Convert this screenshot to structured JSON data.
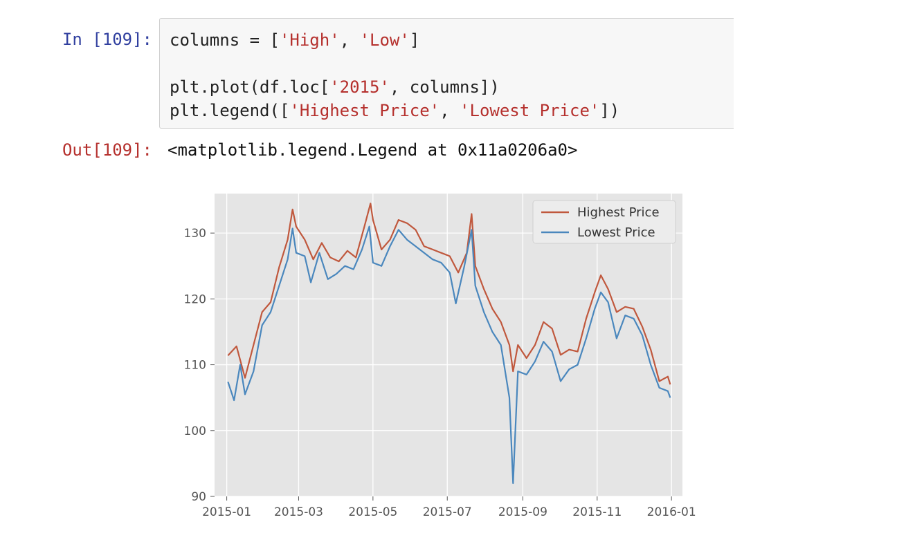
{
  "cell": {
    "in_prompt": "In [109]:",
    "out_prompt": "Out[109]:",
    "code": {
      "line1": {
        "a": "columns = [",
        "s1": "'High'",
        "b": ", ",
        "s2": "'Low'",
        "c": "]"
      },
      "line2": {
        "a": "plt.plot(df.loc[",
        "s1": "'2015'",
        "b": ", columns])"
      },
      "line3": {
        "a": "plt.legend([",
        "s1": "'Highest Price'",
        "b": ", ",
        "s2": "'Lowest Price'",
        "c": "])"
      }
    },
    "output_text": "<matplotlib.legend.Legend at 0x11a0206a0>"
  },
  "colors": {
    "high": "#c0583d",
    "low": "#4a87bd",
    "plot_bg": "#e5e5e5",
    "grid": "#ffffff"
  },
  "chart_data": {
    "type": "line",
    "ylim": [
      90,
      136
    ],
    "y_ticks": [
      90,
      100,
      110,
      120,
      130
    ],
    "x_ticks": [
      "2015-01",
      "2015-03",
      "2015-05",
      "2015-07",
      "2015-09",
      "2015-11",
      "2016-01"
    ],
    "xlim": [
      "2014-12-22",
      "2016-01-10"
    ],
    "legend": {
      "position": "upper right",
      "entries": [
        "Highest Price",
        "Lowest Price"
      ]
    },
    "grid": true,
    "series": [
      {
        "name": "Highest Price",
        "color_key": "high",
        "points": [
          [
            "2015-01-02",
            111.4
          ],
          [
            "2015-01-09",
            112.8
          ],
          [
            "2015-01-16",
            108.0
          ],
          [
            "2015-01-23",
            113.0
          ],
          [
            "2015-01-30",
            118.0
          ],
          [
            "2015-02-06",
            119.5
          ],
          [
            "2015-02-13",
            124.8
          ],
          [
            "2015-02-20",
            129.0
          ],
          [
            "2015-02-24",
            133.6
          ],
          [
            "2015-02-27",
            131.0
          ],
          [
            "2015-03-06",
            129.0
          ],
          [
            "2015-03-13",
            126.0
          ],
          [
            "2015-03-20",
            128.5
          ],
          [
            "2015-03-27",
            126.3
          ],
          [
            "2015-04-03",
            125.7
          ],
          [
            "2015-04-10",
            127.3
          ],
          [
            "2015-04-17",
            126.3
          ],
          [
            "2015-04-24",
            131.0
          ],
          [
            "2015-04-29",
            134.5
          ],
          [
            "2015-05-01",
            132.0
          ],
          [
            "2015-05-08",
            127.5
          ],
          [
            "2015-05-15",
            129.0
          ],
          [
            "2015-05-22",
            132.0
          ],
          [
            "2015-05-29",
            131.5
          ],
          [
            "2015-06-05",
            130.5
          ],
          [
            "2015-06-12",
            128.0
          ],
          [
            "2015-06-19",
            127.5
          ],
          [
            "2015-06-26",
            127.0
          ],
          [
            "2015-07-03",
            126.5
          ],
          [
            "2015-07-10",
            124.0
          ],
          [
            "2015-07-17",
            127.0
          ],
          [
            "2015-07-21",
            132.9
          ],
          [
            "2015-07-24",
            125.0
          ],
          [
            "2015-07-31",
            121.5
          ],
          [
            "2015-08-07",
            118.5
          ],
          [
            "2015-08-14",
            116.5
          ],
          [
            "2015-08-21",
            113.0
          ],
          [
            "2015-08-24",
            109.0
          ],
          [
            "2015-08-28",
            113.0
          ],
          [
            "2015-09-04",
            111.0
          ],
          [
            "2015-09-11",
            113.0
          ],
          [
            "2015-09-18",
            116.5
          ],
          [
            "2015-09-25",
            115.5
          ],
          [
            "2015-10-02",
            111.5
          ],
          [
            "2015-10-09",
            112.3
          ],
          [
            "2015-10-16",
            112.0
          ],
          [
            "2015-10-23",
            117.0
          ],
          [
            "2015-10-30",
            121.0
          ],
          [
            "2015-11-04",
            123.6
          ],
          [
            "2015-11-10",
            121.5
          ],
          [
            "2015-11-17",
            118.0
          ],
          [
            "2015-11-24",
            118.8
          ],
          [
            "2015-12-01",
            118.5
          ],
          [
            "2015-12-08",
            115.8
          ],
          [
            "2015-12-15",
            112.3
          ],
          [
            "2015-12-22",
            107.5
          ],
          [
            "2015-12-29",
            108.2
          ],
          [
            "2015-12-31",
            107.0
          ]
        ]
      },
      {
        "name": "Lowest Price",
        "color_key": "low",
        "points": [
          [
            "2015-01-02",
            107.4
          ],
          [
            "2015-01-07",
            104.6
          ],
          [
            "2015-01-12",
            110.0
          ],
          [
            "2015-01-16",
            105.5
          ],
          [
            "2015-01-23",
            109.0
          ],
          [
            "2015-01-30",
            116.0
          ],
          [
            "2015-02-06",
            118.0
          ],
          [
            "2015-02-13",
            122.0
          ],
          [
            "2015-02-20",
            126.0
          ],
          [
            "2015-02-24",
            130.7
          ],
          [
            "2015-02-27",
            127.0
          ],
          [
            "2015-03-06",
            126.5
          ],
          [
            "2015-03-11",
            122.5
          ],
          [
            "2015-03-18",
            127.0
          ],
          [
            "2015-03-25",
            123.0
          ],
          [
            "2015-04-01",
            123.8
          ],
          [
            "2015-04-08",
            125.0
          ],
          [
            "2015-04-15",
            124.5
          ],
          [
            "2015-04-22",
            127.5
          ],
          [
            "2015-04-28",
            131.0
          ],
          [
            "2015-05-01",
            125.5
          ],
          [
            "2015-05-08",
            125.0
          ],
          [
            "2015-05-15",
            128.0
          ],
          [
            "2015-05-22",
            130.5
          ],
          [
            "2015-05-29",
            129.0
          ],
          [
            "2015-06-05",
            128.0
          ],
          [
            "2015-06-12",
            127.0
          ],
          [
            "2015-06-19",
            126.0
          ],
          [
            "2015-06-26",
            125.5
          ],
          [
            "2015-07-03",
            124.0
          ],
          [
            "2015-07-08",
            119.3
          ],
          [
            "2015-07-15",
            125.0
          ],
          [
            "2015-07-21",
            130.5
          ],
          [
            "2015-07-24",
            122.0
          ],
          [
            "2015-07-31",
            118.0
          ],
          [
            "2015-08-07",
            115.0
          ],
          [
            "2015-08-14",
            113.0
          ],
          [
            "2015-08-21",
            105.0
          ],
          [
            "2015-08-24",
            92.0
          ],
          [
            "2015-08-28",
            109.0
          ],
          [
            "2015-09-04",
            108.5
          ],
          [
            "2015-09-11",
            110.5
          ],
          [
            "2015-09-18",
            113.5
          ],
          [
            "2015-09-25",
            112.0
          ],
          [
            "2015-10-02",
            107.5
          ],
          [
            "2015-10-09",
            109.3
          ],
          [
            "2015-10-16",
            110.0
          ],
          [
            "2015-10-23",
            114.0
          ],
          [
            "2015-10-30",
            118.5
          ],
          [
            "2015-11-04",
            121.0
          ],
          [
            "2015-11-10",
            119.5
          ],
          [
            "2015-11-17",
            114.0
          ],
          [
            "2015-11-24",
            117.5
          ],
          [
            "2015-12-01",
            117.0
          ],
          [
            "2015-12-08",
            114.5
          ],
          [
            "2015-12-15",
            110.0
          ],
          [
            "2015-12-22",
            106.5
          ],
          [
            "2015-12-29",
            106.0
          ],
          [
            "2015-12-31",
            105.0
          ]
        ]
      }
    ]
  }
}
